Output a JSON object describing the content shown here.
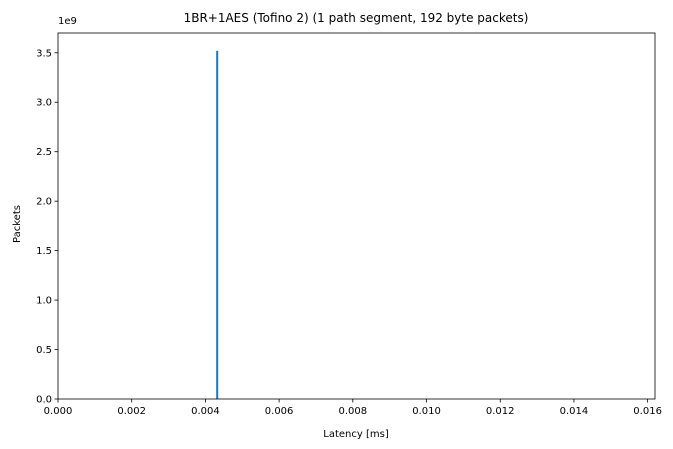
{
  "chart_data": {
    "type": "bar",
    "title": "1BR+1AES (Tofino 2) (1 path segment, 192 byte packets)",
    "xlabel": "Latency [ms]",
    "ylabel": "Packets",
    "y_offset_text": "1e9",
    "xlim": [
      0,
      0.0162
    ],
    "ylim": [
      0,
      3.7
    ],
    "x_ticks": [
      0,
      0.002,
      0.004,
      0.006,
      0.008,
      0.01,
      0.012,
      0.014,
      0.016
    ],
    "x_tick_labels": [
      "0.000",
      "0.002",
      "0.004",
      "0.006",
      "0.008",
      "0.010",
      "0.012",
      "0.014",
      "0.016"
    ],
    "y_ticks": [
      0,
      0.5,
      1.0,
      1.5,
      2.0,
      2.5,
      3.0,
      3.5
    ],
    "y_tick_labels": [
      "0.0",
      "0.5",
      "1.0",
      "1.5",
      "2.0",
      "2.5",
      "3.0",
      "3.5"
    ],
    "grid": false,
    "series": [
      {
        "x": [
          0.00432
        ],
        "values": [
          3.52
        ],
        "color": "#1f77b4"
      }
    ]
  }
}
